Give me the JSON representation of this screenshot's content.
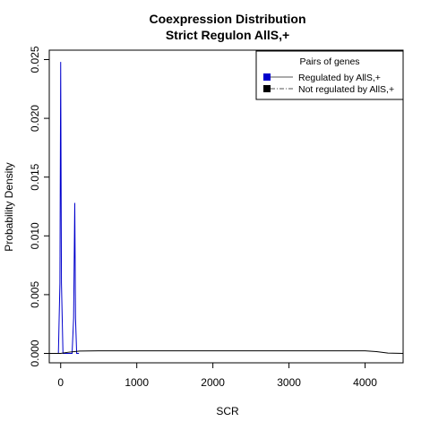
{
  "chart_data": {
    "type": "line",
    "title": "Coexpression Distribution",
    "subtitle": "Strict Regulon AllS,+",
    "xlabel": "SCR",
    "ylabel": "Probability Density",
    "xlim": [
      -150,
      4500
    ],
    "ylim": [
      -0.0008,
      0.0258
    ],
    "x_ticks": [
      0,
      1000,
      2000,
      3000,
      4000
    ],
    "x_tick_labels": [
      "0",
      "1000",
      "2000",
      "3000",
      "4000"
    ],
    "y_ticks": [
      0.0,
      0.005,
      0.01,
      0.015,
      0.02,
      0.025
    ],
    "y_tick_labels": [
      "0.000",
      "0.005",
      "0.010",
      "0.015",
      "0.020",
      "0.025"
    ],
    "grid": false,
    "legend": {
      "title": "Pairs of genes",
      "placement": "top-right",
      "entries": [
        {
          "label": "Regulated by  AllS,+",
          "color": "#0000cc",
          "linestyle": "solid"
        },
        {
          "label": "Not regulated by  AllS,+",
          "color": "#000000",
          "linestyle": "dashdot"
        }
      ]
    },
    "series": [
      {
        "name": "Regulated by  AllS,+",
        "color": "#0000cc",
        "x": [
          -150,
          -30,
          -10,
          0,
          10,
          30,
          50,
          100,
          150,
          170,
          185,
          195,
          210,
          240
        ],
        "y": [
          0.0,
          0.0,
          0.006,
          0.0248,
          0.006,
          0.0,
          0.0,
          0.0,
          0.0,
          0.003,
          0.0128,
          0.003,
          0.0,
          0.0
        ]
      },
      {
        "name": "Not regulated by  AllS,+",
        "color": "#000000",
        "x": [
          -150,
          0,
          100,
          250,
          500,
          1000,
          2000,
          3000,
          4000,
          4150,
          4300,
          4500
        ],
        "y": [
          0.0,
          0.0,
          0.0001,
          0.0002,
          0.00022,
          0.00022,
          0.00022,
          0.00022,
          0.00022,
          0.00015,
          3e-05,
          0.0
        ]
      }
    ]
  }
}
